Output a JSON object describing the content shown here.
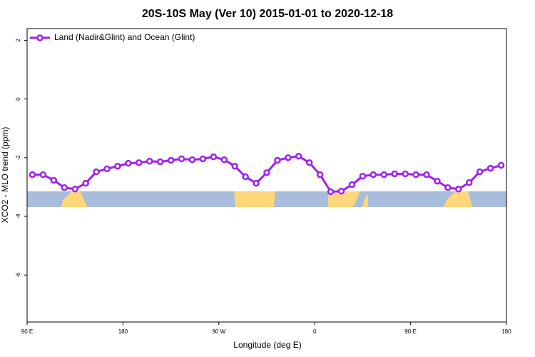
{
  "chart_data": {
    "type": "line",
    "title": "20S-10S May (Ver 10)   2015-01-01 to 2020-12-18",
    "xlabel": "Longitude (deg E)",
    "ylabel": "XCO2 - MLO trend (ppm)",
    "xlim": [
      90,
      540
    ],
    "ylim": [
      -7.6,
      2.4
    ],
    "xticks": [
      {
        "value": 90,
        "label": "90 E"
      },
      {
        "value": 180,
        "label": "180"
      },
      {
        "value": 270,
        "label": "90 W"
      },
      {
        "value": 360,
        "label": "0"
      },
      {
        "value": 450,
        "label": "90 E"
      },
      {
        "value": 540,
        "label": "180"
      }
    ],
    "yticks": [
      2,
      0,
      -2,
      -4,
      -6
    ],
    "legend": "top-left",
    "series": [
      {
        "name": "Land (Nadir&Glint) and Ocean (Glint)",
        "color": "#a020f0",
        "x": [
          95,
          105,
          115,
          125,
          135,
          145,
          155,
          165,
          175,
          185,
          195,
          205,
          215,
          225,
          235,
          245,
          255,
          265,
          275,
          285,
          295,
          305,
          315,
          325,
          335,
          345,
          355,
          365,
          375,
          385,
          395,
          405,
          415,
          425,
          435,
          445,
          455,
          465,
          475,
          485,
          495,
          505,
          515,
          525,
          535
        ],
        "values": [
          -2.58,
          -2.58,
          -2.77,
          -3.02,
          -3.07,
          -2.87,
          -2.48,
          -2.38,
          -2.29,
          -2.19,
          -2.17,
          -2.12,
          -2.14,
          -2.09,
          -2.04,
          -2.07,
          -2.04,
          -1.97,
          -2.07,
          -2.29,
          -2.65,
          -2.87,
          -2.51,
          -2.09,
          -2.0,
          -1.95,
          -2.17,
          -2.58,
          -3.16,
          -3.14,
          -2.92,
          -2.63,
          -2.58,
          -2.58,
          -2.55,
          -2.55,
          -2.58,
          -2.58,
          -2.8,
          -3.02,
          -3.07,
          -2.85,
          -2.48,
          -2.36,
          -2.26
        ]
      }
    ]
  }
}
